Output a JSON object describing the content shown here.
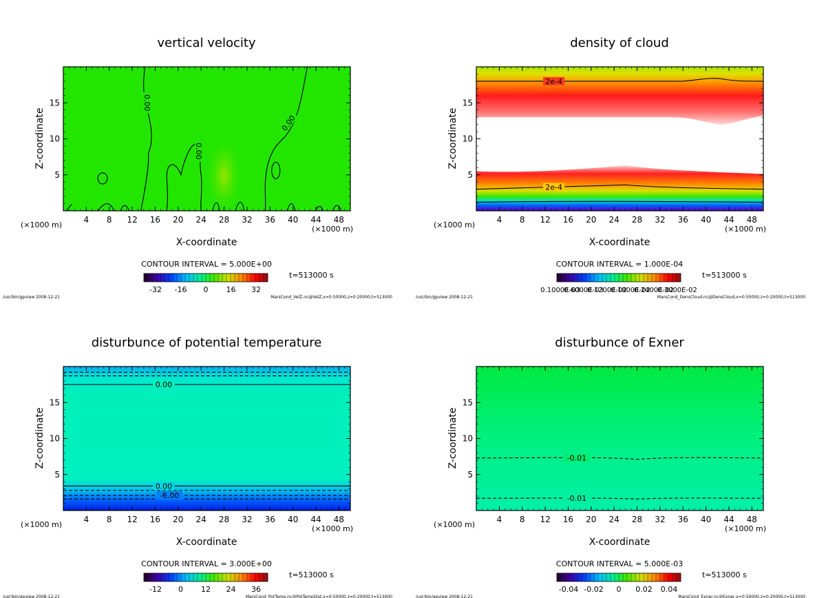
{
  "panels": [
    {
      "title": "vertical velocity",
      "xlabel": "X-coordinate",
      "ylabel": "Z-coordinate",
      "x_unit_left": "(×1000 m)",
      "x_unit_right": "(×1000 m)",
      "contour_interval": "CONTOUR INTERVAL = 5.000E+00",
      "time": "t=513000 s",
      "footer_left": "/usr/bin/gpview  2008-12-21",
      "footer_right": "MarsCond_VelZ.nc@VelZ,x=0:50000,z=0:20000,t=513000",
      "colorbar_ticks": [
        "-32",
        "-16",
        "0",
        "16",
        "32"
      ],
      "contour_labels": [
        "0.00",
        "0.00",
        "0.00"
      ]
    },
    {
      "title": "density of cloud",
      "xlabel": "X-coordinate",
      "ylabel": "Z-coordinate",
      "x_unit_left": "(×1000 m)",
      "x_unit_right": "(×1000 m)",
      "contour_interval": "CONTOUR INTERVAL = 1.000E-04",
      "time": "t=513000 s",
      "footer_left": "/usr/bin/gpview  2008-12-21",
      "footer_right": "MarsCond_DensCloud.nc@DensCloud,x=0:50000,z=0:20000,t=513000",
      "colorbar_ticks": [
        "0.1000E-03",
        "0.6000E-03",
        "0.1200E-02",
        "0.1800E-02",
        "0.2400E-02",
        "0.3000E-02"
      ],
      "contour_labels": [
        "2e-4",
        "2e-4"
      ]
    },
    {
      "title": "disturbunce of potential temperature",
      "xlabel": "X-coordinate",
      "ylabel": "Z-coordinate",
      "x_unit_left": "(×1000 m)",
      "x_unit_right": "(×1000 m)",
      "contour_interval": "CONTOUR INTERVAL = 3.000E+00",
      "time": "t=513000 s",
      "footer_left": "/usr/bin/gpview  2008-12-21",
      "footer_right": "MarsCond_PotTemp.nc@PotTempDist,x=0:50000,z=0:20000,t=513000",
      "colorbar_ticks": [
        "-12",
        "0",
        "12",
        "24",
        "36"
      ],
      "contour_labels": [
        "0.00",
        "0.00",
        "-6.00"
      ]
    },
    {
      "title": "disturbunce of Exner",
      "xlabel": "X-coordinate",
      "ylabel": "Z-coordinate",
      "x_unit_left": "(×1000 m)",
      "x_unit_right": "(×1000 m)",
      "contour_interval": "CONTOUR INTERVAL = 5.000E-03",
      "time": "t=513000 s",
      "footer_left": "/usr/bin/gpview  2008-12-21",
      "footer_right": "MarsCond_Exner.nc@Exner,x=0:50000,z=0:20000,t=513000",
      "colorbar_ticks": [
        "-0.04",
        "-0.02",
        "0",
        "0.02",
        "0.04"
      ],
      "contour_labels": [
        "-0.01",
        "-0.01"
      ]
    }
  ],
  "chart_data": [
    {
      "type": "heatmap",
      "title": "vertical velocity",
      "xlabel": "X-coordinate",
      "ylabel": "Z-coordinate",
      "x_ticks": [
        4,
        8,
        12,
        16,
        20,
        24,
        28,
        32,
        36,
        40,
        44,
        48
      ],
      "y_ticks": [
        5,
        10,
        15
      ],
      "xlim": [
        0,
        50
      ],
      "ylim": [
        0,
        20
      ],
      "colorbar": {
        "ticks": [
          -32,
          -16,
          0,
          16,
          32
        ],
        "contour_interval": 5.0
      },
      "contours": [
        {
          "value": 0.0,
          "label": "0.00"
        }
      ],
      "colors": {
        "field": "#22e600",
        "highlight": "#9be600"
      }
    },
    {
      "type": "heatmap",
      "title": "density of cloud",
      "xlabel": "X-coordinate",
      "ylabel": "Z-coordinate",
      "x_ticks": [
        4,
        8,
        12,
        16,
        20,
        24,
        28,
        32,
        36,
        40,
        44,
        48
      ],
      "y_ticks": [
        5,
        10,
        15
      ],
      "xlim": [
        0,
        50
      ],
      "ylim": [
        0,
        20
      ],
      "colorbar": {
        "ticks": [
          0.0001,
          0.0006,
          0.0012,
          0.0018,
          0.0024,
          0.003
        ],
        "contour_interval": 0.0001
      },
      "contours": [
        {
          "value": 0.0002,
          "label": "2e-4"
        }
      ],
      "colors": {
        "top": "#a8e600",
        "band": "#ff1a1a",
        "core": "#ffd0d0",
        "gap": "#ffffff",
        "bottom": "#4400ff"
      }
    },
    {
      "type": "heatmap",
      "title": "disturbunce of potential temperature",
      "xlabel": "X-coordinate",
      "ylabel": "Z-coordinate",
      "x_ticks": [
        4,
        8,
        12,
        16,
        20,
        24,
        28,
        32,
        36,
        40,
        44,
        48
      ],
      "y_ticks": [
        5,
        10,
        15
      ],
      "xlim": [
        0,
        50
      ],
      "ylim": [
        0,
        20
      ],
      "colorbar": {
        "ticks": [
          -12,
          0,
          12,
          24,
          36
        ],
        "contour_interval": 3.0
      },
      "contours": [
        {
          "value": 0.0,
          "label": "0.00"
        },
        {
          "value": -6.0,
          "label": "-6.00"
        }
      ],
      "colors": {
        "field": "#00f0b0",
        "top": "#00ccf0",
        "bottom": "#0030ff"
      }
    },
    {
      "type": "heatmap",
      "title": "disturbunce of Exner",
      "xlabel": "X-coordinate",
      "ylabel": "Z-coordinate",
      "x_ticks": [
        4,
        8,
        12,
        16,
        20,
        24,
        28,
        32,
        36,
        40,
        44,
        48
      ],
      "y_ticks": [
        5,
        10,
        15
      ],
      "xlim": [
        0,
        50
      ],
      "ylim": [
        0,
        20
      ],
      "colorbar": {
        "ticks": [
          -0.04,
          -0.02,
          0,
          0.02,
          0.04
        ],
        "contour_interval": 0.005
      },
      "contours": [
        {
          "value": -0.01,
          "label": "-0.01"
        }
      ],
      "colors": {
        "top": "#00ee44",
        "bottom": "#00f0a0"
      }
    }
  ]
}
